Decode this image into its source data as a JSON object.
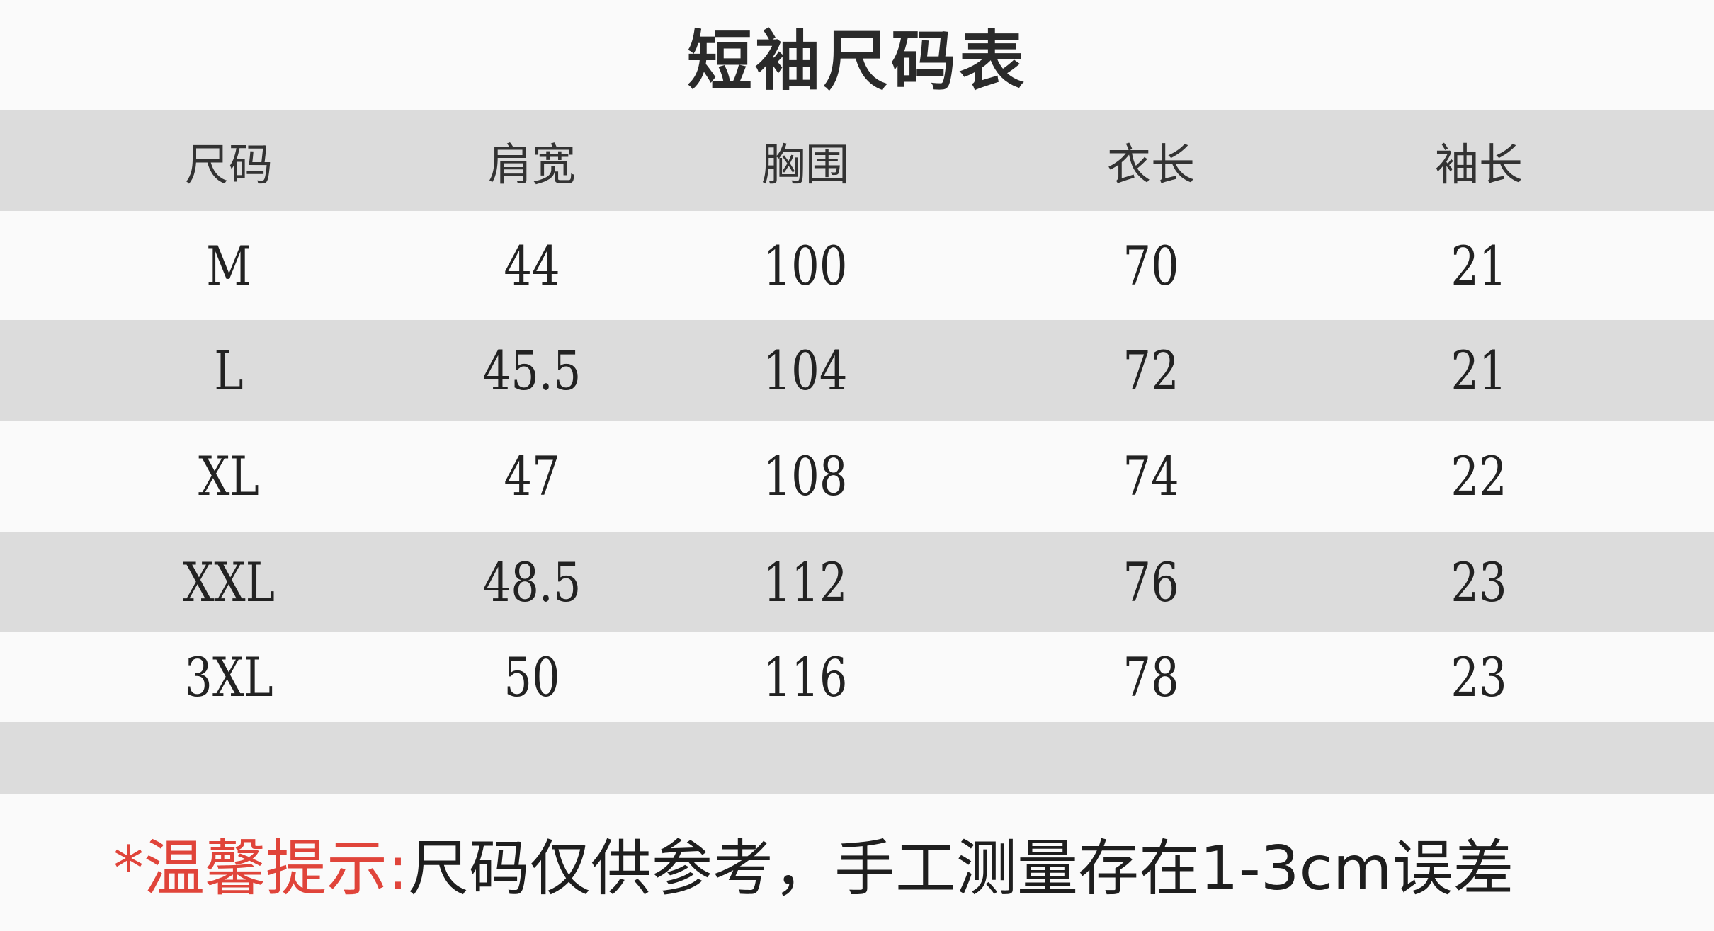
{
  "title": "短袖尺码表",
  "headers": [
    "尺码",
    "肩宽",
    "胸围",
    "衣长",
    "袖长"
  ],
  "rows": [
    [
      "M",
      "44",
      "100",
      "70",
      "21"
    ],
    [
      "L",
      "45.5",
      "104",
      "72",
      "21"
    ],
    [
      "XL",
      "47",
      "108",
      "74",
      "22"
    ],
    [
      "XXL",
      "48.5",
      "112",
      "76",
      "23"
    ],
    [
      "3XL",
      "50",
      "116",
      "78",
      "23"
    ]
  ],
  "footer": {
    "warning_label": "*温馨提示:",
    "note": "尺码仅供参考，手工测量存在1-3cm误差",
    "warning_color": "#e0443a"
  }
}
